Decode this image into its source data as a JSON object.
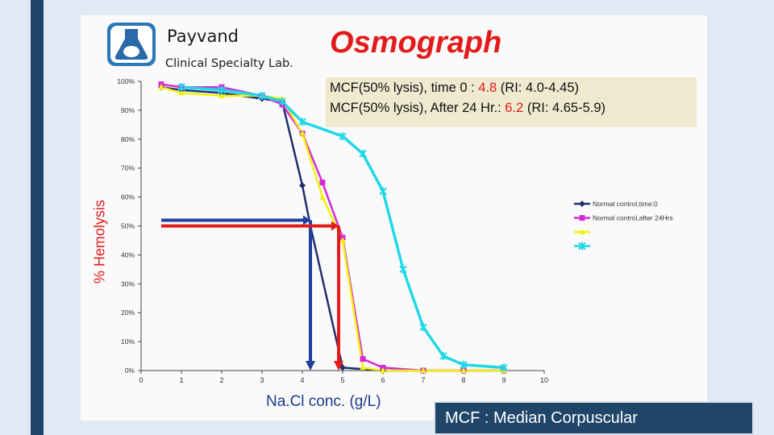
{
  "header": {
    "lab_name": "Payvand",
    "lab_subtitle": "Clinical Specialty Lab.",
    "title": "Osmograph"
  },
  "mcf_box": {
    "line1_prefix": "MCF(50% lysis), time 0 : ",
    "line1_value": "4.8",
    "line1_suffix": " (RI: 4.0-4.45)",
    "line2_prefix": "MCF(50% lysis), After 24 Hr.: ",
    "line2_value": "6.2",
    "line2_suffix": " (RI: 4.65-5.9)"
  },
  "footer": {
    "text": "MCF : Median Corpuscular"
  },
  "colors": {
    "accent_red": "#e31b1b",
    "dark_navy": "#1f4569",
    "box_bg": "#efe9cf"
  },
  "chart_data": {
    "type": "line",
    "xlabel": "Na.Cl conc. (g/L)",
    "ylabel": "% Hemolysis",
    "xlim": [
      0,
      10
    ],
    "ylim": [
      0,
      100
    ],
    "x_ticks": [
      "0",
      "1",
      "2",
      "3",
      "4",
      "5",
      "6",
      "7",
      "8",
      "9",
      "10"
    ],
    "y_ticks": [
      "0%",
      "10%",
      "20%",
      "30%",
      "40%",
      "50%",
      "60%",
      "70%",
      "80%",
      "90%",
      "100%"
    ],
    "grid": false,
    "legend_position": "right",
    "series": [
      {
        "name": "Normal control,time:0",
        "color": "#1f2f6e",
        "marker": "diamond",
        "points": [
          [
            0.5,
            98
          ],
          [
            1,
            97
          ],
          [
            2,
            96
          ],
          [
            3,
            94
          ],
          [
            3.5,
            93
          ],
          [
            4,
            64
          ],
          [
            4.2,
            50
          ],
          [
            5,
            1
          ],
          [
            6,
            0
          ],
          [
            7,
            0
          ],
          [
            8,
            0
          ],
          [
            9,
            0
          ]
        ]
      },
      {
        "name": "Normal control,after 24Hrs",
        "color": "#d42ad6",
        "marker": "square",
        "points": [
          [
            0.5,
            99
          ],
          [
            1,
            98
          ],
          [
            2,
            98
          ],
          [
            3,
            95
          ],
          [
            3.5,
            92
          ],
          [
            4,
            82
          ],
          [
            4.5,
            65
          ],
          [
            5,
            46
          ],
          [
            5.5,
            4
          ],
          [
            6,
            1
          ],
          [
            7,
            0
          ],
          [
            8,
            0
          ],
          [
            9,
            0
          ]
        ]
      },
      {
        "name": "",
        "color": "#f2f20a",
        "marker": "triangle",
        "points": [
          [
            0.5,
            98
          ],
          [
            1,
            96
          ],
          [
            2,
            95
          ],
          [
            3,
            95
          ],
          [
            3.5,
            94
          ],
          [
            4,
            82
          ],
          [
            4.5,
            60
          ],
          [
            5,
            45
          ],
          [
            5.5,
            1
          ],
          [
            6,
            0
          ],
          [
            7,
            0
          ],
          [
            8,
            0
          ],
          [
            9,
            0
          ]
        ]
      },
      {
        "name": "",
        "color": "#20d8e8",
        "marker": "x",
        "points": [
          [
            1,
            98
          ],
          [
            2,
            97
          ],
          [
            3,
            95
          ],
          [
            3.5,
            93
          ],
          [
            4,
            86
          ],
          [
            5,
            81
          ],
          [
            5.5,
            75
          ],
          [
            6,
            62
          ],
          [
            6.5,
            35
          ],
          [
            7,
            15
          ],
          [
            7.5,
            5
          ],
          [
            8,
            2
          ],
          [
            9,
            1
          ]
        ]
      }
    ],
    "annotations": [
      {
        "type": "arrow",
        "color": "#1f3fa0",
        "from": [
          0.5,
          52
        ],
        "to": [
          4.2,
          52
        ],
        "then_to": [
          4.2,
          0
        ]
      },
      {
        "type": "arrow",
        "color": "#e31b1b",
        "from": [
          0.5,
          50
        ],
        "to": [
          4.9,
          50
        ],
        "then_to": [
          4.9,
          0
        ]
      }
    ]
  }
}
